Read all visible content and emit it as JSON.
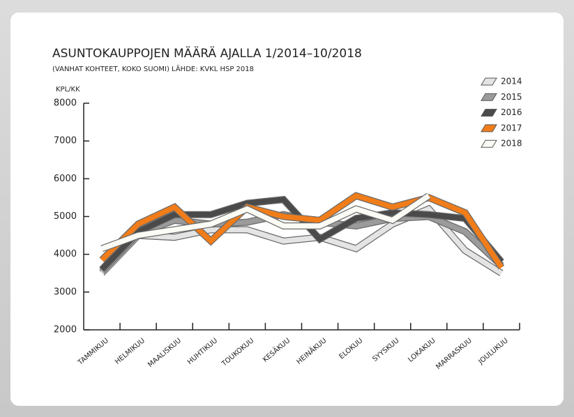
{
  "chart_data": {
    "type": "line",
    "title": "ASUNTOKAUPPOJEN MÄÄRÄ AJALLA 1/2014–10/2018",
    "subtitle": "(VANHAT KOHTEET, KOKO SUOMI) LÄHDE: KVKL HSP 2018",
    "y_label": "KPL/KK",
    "categories": [
      "TAMMIKUU",
      "HELMIKUU",
      "MAALISKUU",
      "HUHTIKUU",
      "TOUKOKUU",
      "KESÄKUU",
      "HEINÄKUU",
      "ELOKUU",
      "SYYSKUU",
      "LOKAKUU",
      "MARRASKUU",
      "JOULUKUU"
    ],
    "series": [
      {
        "name": "2014",
        "color": "#e4e4e4",
        "values": [
          3500,
          4500,
          4450,
          4650,
          4650,
          4350,
          4450,
          4150,
          4800,
          5200,
          4100,
          3500
        ]
      },
      {
        "name": "2015",
        "color": "#9b9b9b",
        "values": [
          3550,
          4550,
          4900,
          4800,
          4850,
          5050,
          4850,
          4750,
          4950,
          5000,
          4600,
          3700
        ]
      },
      {
        "name": "2016",
        "color": "#4a4a4a",
        "values": [
          3600,
          4600,
          5050,
          5050,
          5350,
          5450,
          4400,
          4950,
          5100,
          5050,
          4950,
          3800
        ]
      },
      {
        "name": "2017",
        "color": "#f07d1a",
        "values": [
          3850,
          4800,
          5250,
          4350,
          5250,
          5000,
          4900,
          5550,
          5250,
          5500,
          5100,
          3650
        ]
      },
      {
        "name": "2018",
        "color": "#fbfbf6",
        "values": [
          4150,
          4500,
          4650,
          4800,
          5200,
          4750,
          4750,
          5200,
          4900,
          5550,
          null,
          null
        ]
      }
    ],
    "ylim": [
      2000,
      8000
    ],
    "yticks": [
      2000,
      3000,
      4000,
      5000,
      6000,
      7000,
      8000
    ],
    "legend": "upper right"
  }
}
